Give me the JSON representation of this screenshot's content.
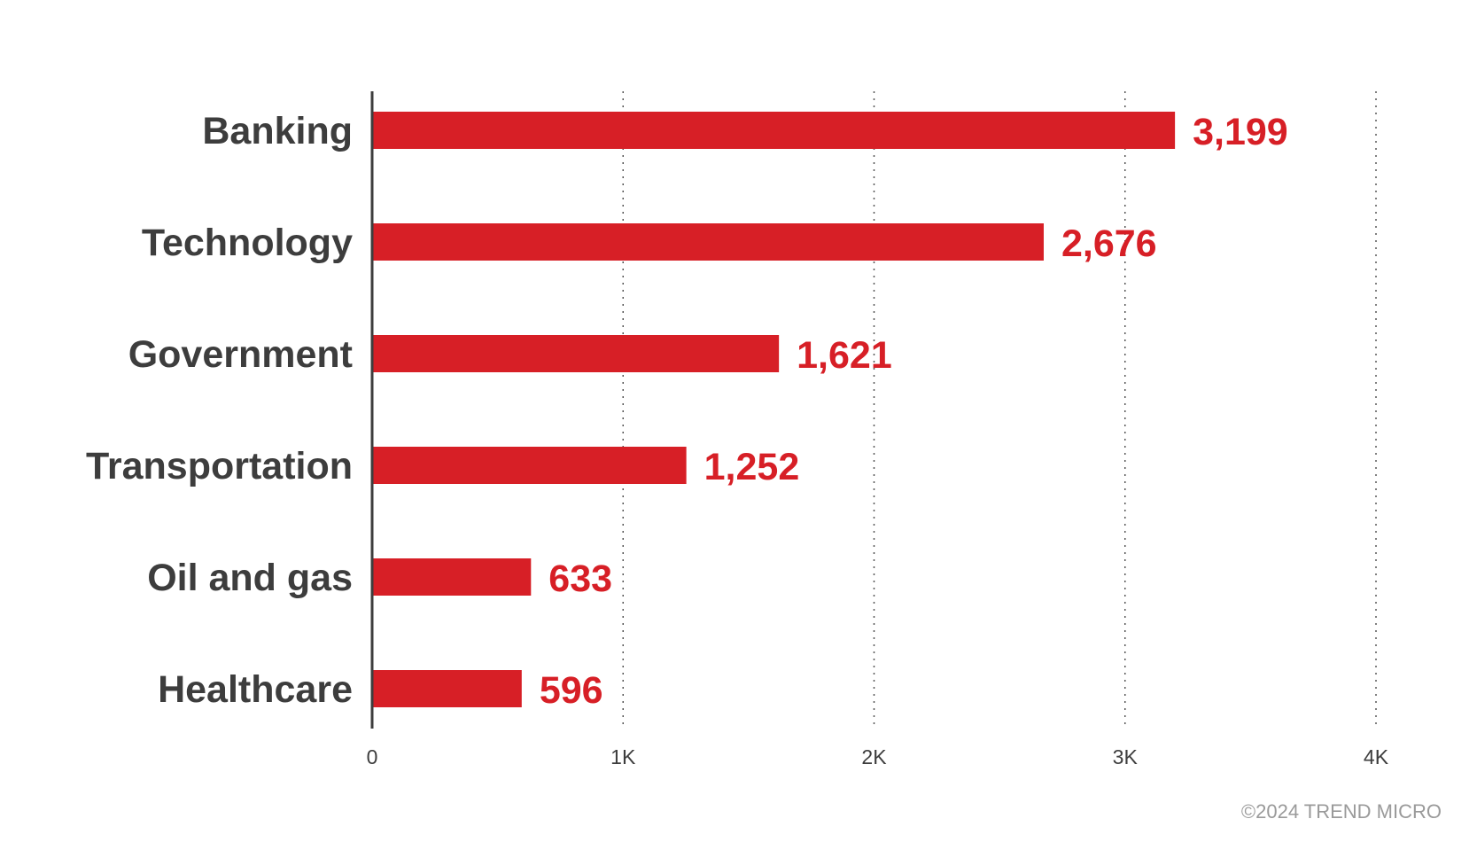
{
  "chart_data": {
    "type": "bar",
    "orientation": "horizontal",
    "categories": [
      "Banking",
      "Technology",
      "Government",
      "Transportation",
      "Oil and gas",
      "Healthcare"
    ],
    "values": [
      3199,
      2676,
      1621,
      1252,
      633,
      596
    ],
    "value_labels": [
      "3,199",
      "2,676",
      "1,621",
      "1,252",
      "633",
      "596"
    ],
    "xlim": [
      0,
      4000
    ],
    "xticks": [
      0,
      1000,
      2000,
      3000,
      4000
    ],
    "xtick_labels": [
      "0",
      "1K",
      "2K",
      "3K",
      "4K"
    ],
    "grid": "vertical dotted",
    "bar_color": "#d71f26",
    "label_color": "#3d3d3d",
    "value_color": "#d71f26"
  },
  "footer": {
    "credit": "©2024 TREND MICRO"
  }
}
